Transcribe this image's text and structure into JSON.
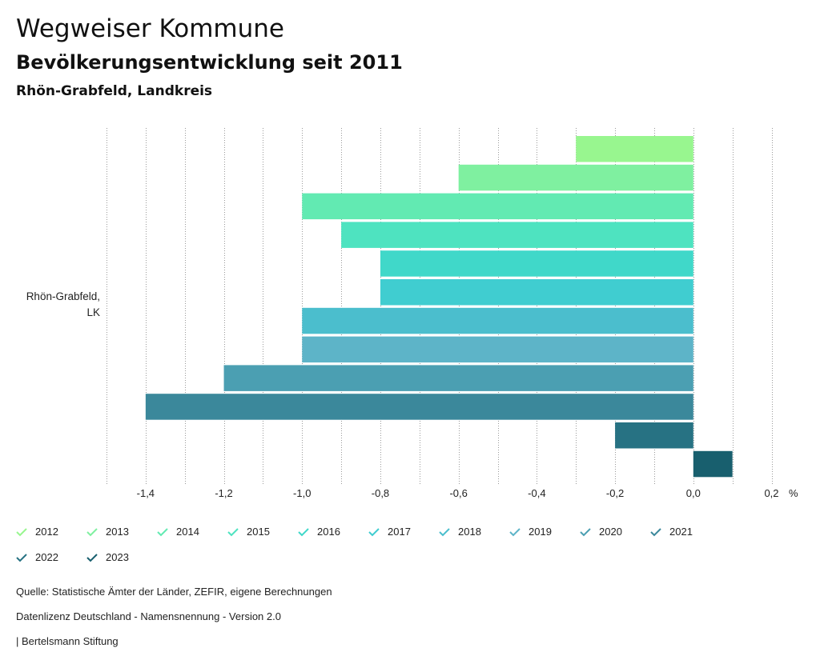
{
  "header": {
    "title": "Wegweiser Kommune",
    "subtitle": "Bevölkerungsentwicklung seit 2011",
    "region": "Rhön-Grabfeld, Landkreis"
  },
  "chart_data": {
    "type": "bar",
    "orientation": "horizontal",
    "categories": [
      "Rhön-Grabfeld, LK"
    ],
    "category_label_lines": [
      "Rhön-Grabfeld,",
      "LK"
    ],
    "series": [
      {
        "name": "2012",
        "values": [
          -0.3
        ],
        "color": "#98f68f"
      },
      {
        "name": "2013",
        "values": [
          -0.6
        ],
        "color": "#7ff0a0"
      },
      {
        "name": "2014",
        "values": [
          -1.0
        ],
        "color": "#62eab2"
      },
      {
        "name": "2015",
        "values": [
          -0.9
        ],
        "color": "#4ee3c0"
      },
      {
        "name": "2016",
        "values": [
          -0.8
        ],
        "color": "#40d8c9"
      },
      {
        "name": "2017",
        "values": [
          -0.8
        ],
        "color": "#40cdd0"
      },
      {
        "name": "2018",
        "values": [
          -1.0
        ],
        "color": "#4bbecd"
      },
      {
        "name": "2019",
        "values": [
          -1.0
        ],
        "color": "#5db4c8"
      },
      {
        "name": "2020",
        "values": [
          -1.2
        ],
        "color": "#4b9fb2"
      },
      {
        "name": "2021",
        "values": [
          -1.4
        ],
        "color": "#3b889b"
      },
      {
        "name": "2022",
        "values": [
          -0.2
        ],
        "color": "#277283"
      },
      {
        "name": "2023",
        "values": [
          0.1
        ],
        "color": "#185f6e"
      }
    ],
    "xlim": [
      -1.5,
      0.2
    ],
    "x_ticks": [
      -1.4,
      -1.2,
      -1.0,
      -0.8,
      -0.6,
      -0.4,
      -0.2,
      0.0,
      0.2
    ],
    "x_tick_labels": [
      "-1,4",
      "-1,2",
      "-1,0",
      "-0,8",
      "-0,6",
      "-0,4",
      "-0,2",
      "0,0",
      "0,2"
    ],
    "x_grid_values": [
      -1.5,
      -1.4,
      -1.3,
      -1.2,
      -1.1,
      -1.0,
      -0.9,
      -0.8,
      -0.7,
      -0.6,
      -0.5,
      -0.4,
      -0.3,
      -0.2,
      -0.1,
      0.0,
      0.1,
      0.2
    ],
    "x_unit": "%",
    "grid": true,
    "legend_position": "bottom"
  },
  "footer": {
    "source": "Quelle: Statistische Ämter der Länder, ZEFIR, eigene Berechnungen",
    "license": "Datenlizenz Deutschland - Namensnennung - Version 2.0",
    "publisher": "| Bertelsmann Stiftung"
  }
}
